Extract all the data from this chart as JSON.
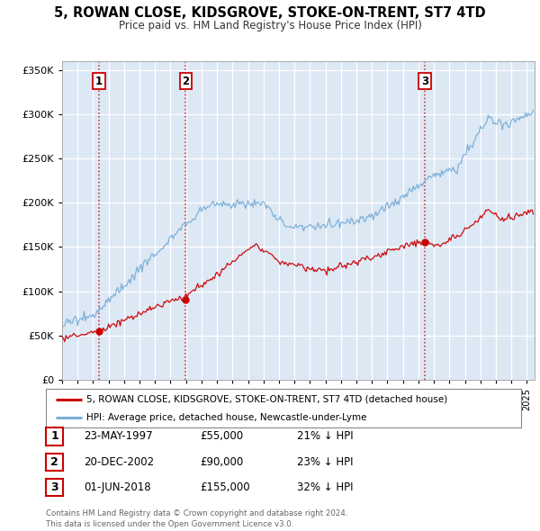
{
  "title": "5, ROWAN CLOSE, KIDSGROVE, STOKE-ON-TRENT, ST7 4TD",
  "subtitle": "Price paid vs. HM Land Registry's House Price Index (HPI)",
  "bg_color": "#dde8f5",
  "red_line_color": "#cc0000",
  "blue_line_color": "#7aaed6",
  "sale_marker_color": "#cc0000",
  "yticks": [
    0,
    50000,
    100000,
    150000,
    200000,
    250000,
    300000,
    350000
  ],
  "ytick_labels": [
    "£0",
    "£50K",
    "£100K",
    "£150K",
    "£200K",
    "£250K",
    "£300K",
    "£350K"
  ],
  "xlim_start": 1995.0,
  "xlim_end": 2025.5,
  "ylim_min": 0,
  "ylim_max": 360000,
  "sales": [
    {
      "year": 1997.388,
      "price": 55000,
      "label": "1"
    },
    {
      "year": 2002.972,
      "price": 90000,
      "label": "2"
    },
    {
      "year": 2018.416,
      "price": 155000,
      "label": "3"
    }
  ],
  "vline_color": "#cc0000",
  "legend_entries": [
    "5, ROWAN CLOSE, KIDSGROVE, STOKE-ON-TRENT, ST7 4TD (detached house)",
    "HPI: Average price, detached house, Newcastle-under-Lyme"
  ],
  "table_rows": [
    {
      "num": "1",
      "date": "23-MAY-1997",
      "price": "£55,000",
      "hpi": "21% ↓ HPI"
    },
    {
      "num": "2",
      "date": "20-DEC-2002",
      "price": "£90,000",
      "hpi": "23% ↓ HPI"
    },
    {
      "num": "3",
      "date": "01-JUN-2018",
      "price": "£155,000",
      "hpi": "32% ↓ HPI"
    }
  ],
  "footer": "Contains HM Land Registry data © Crown copyright and database right 2024.\nThis data is licensed under the Open Government Licence v3.0."
}
